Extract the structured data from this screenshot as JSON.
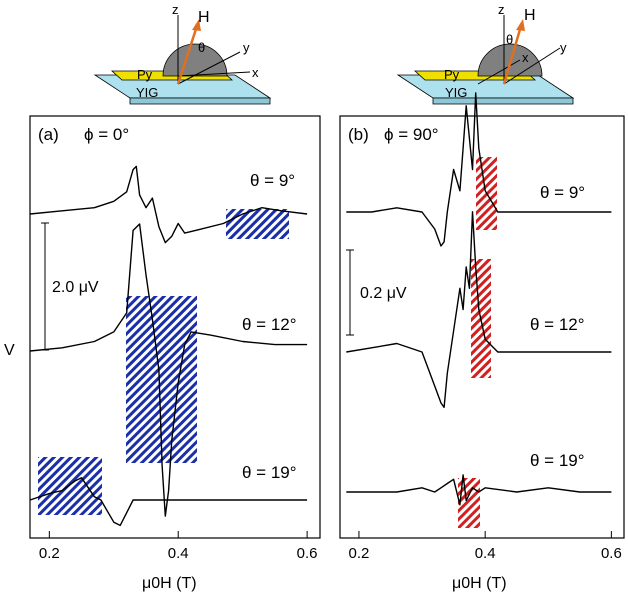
{
  "diagram": {
    "z_label": "z",
    "y_label": "y",
    "x_label": "x",
    "h_label": "H",
    "theta_label": "θ",
    "py_label": "Py",
    "yig_label": "YIG",
    "colors": {
      "substrate": "#aee1ee",
      "strip": "#f0e000",
      "dome": "#808080",
      "field": "#e07020"
    }
  },
  "y_axis_label": "V",
  "hatch_colors": {
    "a": "#1a2fa8",
    "b": "#d02020"
  },
  "chart_data": [
    {
      "type": "line",
      "panel_label": "(a)",
      "condition_label": "ϕ = 0°",
      "xlabel": "μ0H (T)",
      "xlim": [
        0.17,
        0.62
      ],
      "xticks": [
        0.2,
        0.4,
        0.6
      ],
      "tick_labels": [
        "0.2",
        "0.4",
        "0.6"
      ],
      "scale_bar": {
        "label": "2.0 μV",
        "value_uV": 2.0
      },
      "series": [
        {
          "theta_label": "θ = 9°",
          "x": [
            0.17,
            0.22,
            0.27,
            0.3,
            0.32,
            0.33,
            0.335,
            0.34,
            0.35,
            0.36,
            0.37,
            0.38,
            0.39,
            0.4,
            0.41,
            0.43,
            0.47,
            0.5,
            0.53,
            0.56,
            0.6
          ],
          "v": [
            0.0,
            0.05,
            0.1,
            0.2,
            0.35,
            0.7,
            0.75,
            0.3,
            0.1,
            0.25,
            -0.2,
            -0.45,
            -0.35,
            -0.15,
            -0.3,
            -0.25,
            -0.15,
            0.0,
            0.1,
            0.05,
            0.0
          ]
        },
        {
          "theta_label": "θ = 12°",
          "x": [
            0.17,
            0.22,
            0.27,
            0.3,
            0.32,
            0.33,
            0.34,
            0.35,
            0.36,
            0.37,
            0.375,
            0.38,
            0.385,
            0.39,
            0.4,
            0.41,
            0.42,
            0.45,
            0.5,
            0.55,
            0.6
          ],
          "v": [
            0.0,
            0.05,
            0.15,
            0.3,
            0.6,
            1.9,
            2.0,
            1.2,
            0.5,
            -0.3,
            -1.8,
            -2.6,
            -2.2,
            -1.4,
            -0.5,
            0.1,
            0.3,
            0.25,
            0.15,
            0.1,
            0.1
          ]
        },
        {
          "theta_label": "θ = 19°",
          "x": [
            0.17,
            0.2,
            0.22,
            0.24,
            0.25,
            0.26,
            0.27,
            0.28,
            0.3,
            0.31,
            0.32,
            0.33,
            0.35,
            0.4,
            0.5,
            0.6
          ],
          "v": [
            0.0,
            0.1,
            0.15,
            0.3,
            0.35,
            0.2,
            0.05,
            0.0,
            -0.35,
            -0.4,
            -0.2,
            0.0,
            0.0,
            0.0,
            0.0,
            0.0
          ]
        }
      ]
    },
    {
      "type": "line",
      "panel_label": "(b)",
      "condition_label": "ϕ = 90°",
      "xlabel": "μ0H (T)",
      "xlim": [
        0.17,
        0.62
      ],
      "xticks": [
        0.2,
        0.4,
        0.6
      ],
      "tick_labels": [
        "0.2",
        "0.4",
        "0.6"
      ],
      "scale_bar": {
        "label": "0.2 μV",
        "value_uV": 0.2
      },
      "series": [
        {
          "theta_label": "θ = 9°",
          "x": [
            0.18,
            0.22,
            0.26,
            0.3,
            0.32,
            0.33,
            0.335,
            0.34,
            0.35,
            0.36,
            0.365,
            0.37,
            0.38,
            0.385,
            0.39,
            0.4,
            0.42,
            0.45,
            0.5,
            0.55,
            0.6
          ],
          "v": [
            0.0,
            0.0,
            0.01,
            0.0,
            -0.04,
            -0.08,
            -0.07,
            0.0,
            0.1,
            0.05,
            0.15,
            0.25,
            0.1,
            0.28,
            0.15,
            0.05,
            0.0,
            0.0,
            0.0,
            0.0,
            0.0
          ]
        },
        {
          "theta_label": "θ = 12°",
          "x": [
            0.18,
            0.22,
            0.26,
            0.3,
            0.32,
            0.33,
            0.335,
            0.34,
            0.35,
            0.36,
            0.365,
            0.37,
            0.375,
            0.38,
            0.385,
            0.39,
            0.4,
            0.42,
            0.45,
            0.5,
            0.55,
            0.6
          ],
          "v": [
            0.0,
            0.01,
            0.02,
            0.0,
            -0.08,
            -0.12,
            -0.13,
            -0.05,
            0.05,
            0.15,
            0.1,
            0.2,
            0.15,
            0.33,
            0.2,
            0.1,
            0.03,
            0.0,
            0.0,
            0.0,
            0.0,
            0.0
          ]
        },
        {
          "theta_label": "θ = 19°",
          "x": [
            0.18,
            0.22,
            0.26,
            0.3,
            0.32,
            0.33,
            0.34,
            0.35,
            0.36,
            0.365,
            0.37,
            0.38,
            0.39,
            0.4,
            0.45,
            0.5,
            0.55,
            0.6
          ],
          "v": [
            0.0,
            0.0,
            0.0,
            0.01,
            0.0,
            0.01,
            0.02,
            0.03,
            -0.03,
            0.04,
            -0.02,
            0.01,
            0.0,
            0.01,
            0.0,
            0.01,
            0.0,
            0.0
          ]
        }
      ]
    }
  ]
}
